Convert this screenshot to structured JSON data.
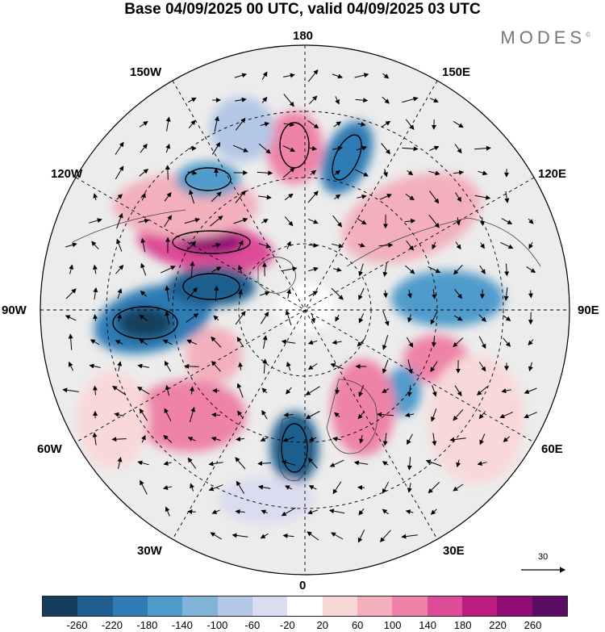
{
  "header": {
    "title": "Base 04/09/2025 00 UTC, valid 04/09/2025 03 UTC"
  },
  "brand": {
    "name": "MODES",
    "mark": "©"
  },
  "map": {
    "projection": "north-polar-stereographic",
    "labels": {
      "top": "180",
      "bottom": "0",
      "left": "90W",
      "right": "90E",
      "w150": "150W",
      "e150": "150E",
      "w120": "120W",
      "e120": "120E",
      "w60": "60W",
      "e60": "60E",
      "w30": "30W",
      "e30": "30E"
    },
    "reference_vector": "30"
  },
  "colorbar": {
    "colors": [
      "#133f5c",
      "#1f5e8e",
      "#2f7cb5",
      "#4f9bcb",
      "#82b4da",
      "#b3c8e6",
      "#dcdcf0",
      "#ffffff",
      "#f9d8d8",
      "#f3b0bc",
      "#ee82a8",
      "#dd4c96",
      "#bb1c82",
      "#8e0c74",
      "#5a0d63"
    ],
    "ticks": [
      "-260",
      "-220",
      "-180",
      "-140",
      "-100",
      "-60",
      "-20",
      "20",
      "60",
      "100",
      "140",
      "180",
      "220",
      "260"
    ]
  }
}
